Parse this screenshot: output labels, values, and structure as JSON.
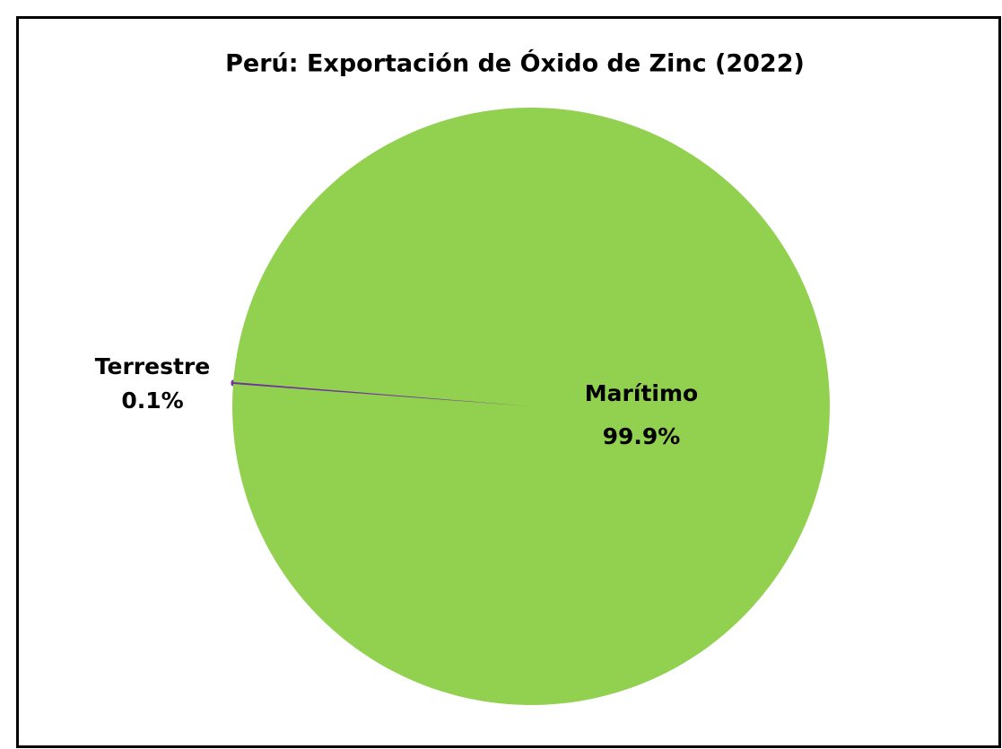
{
  "chart_data": {
    "type": "pie",
    "title": "Perú: Exportación de Óxido de Zinc (2022)",
    "categories": [
      "Terrestre",
      "Marítimo"
    ],
    "values": [
      0.1,
      99.9
    ],
    "value_labels": [
      "0.1%",
      "99.9%"
    ],
    "colors": [
      "#7030a0",
      "#92d050"
    ]
  }
}
